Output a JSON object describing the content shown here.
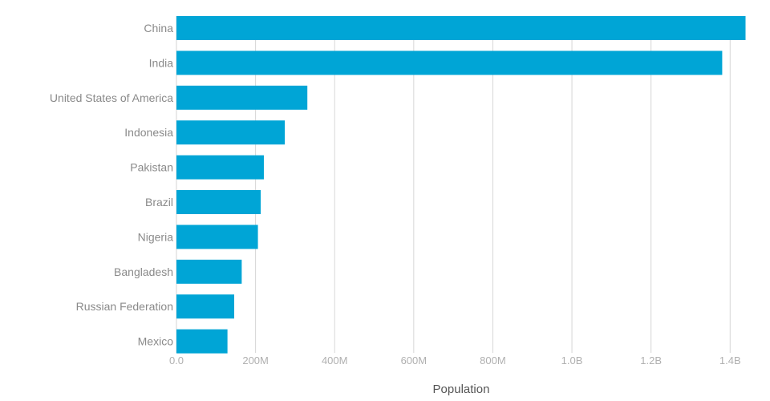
{
  "chart_data": {
    "type": "bar",
    "orientation": "horizontal",
    "categories": [
      "China",
      "India",
      "United States of America",
      "Indonesia",
      "Pakistan",
      "Brazil",
      "Nigeria",
      "Bangladesh",
      "Russian Federation",
      "Mexico"
    ],
    "values": [
      1439000000,
      1380000000,
      331000000,
      274000000,
      221000000,
      213000000,
      206000000,
      165000000,
      146000000,
      129000000
    ],
    "xlabel": "Population",
    "ylabel": "",
    "xlim": [
      0,
      1440000000
    ],
    "ticks": [
      {
        "value": 0,
        "label": "0.0"
      },
      {
        "value": 200000000,
        "label": "200M"
      },
      {
        "value": 400000000,
        "label": "400M"
      },
      {
        "value": 600000000,
        "label": "600M"
      },
      {
        "value": 800000000,
        "label": "800M"
      },
      {
        "value": 1000000000,
        "label": "1.0B"
      },
      {
        "value": 1200000000,
        "label": "1.2B"
      },
      {
        "value": 1400000000,
        "label": "1.4B"
      }
    ],
    "grid": true,
    "colors": {
      "bar": "#00a5d6"
    }
  }
}
